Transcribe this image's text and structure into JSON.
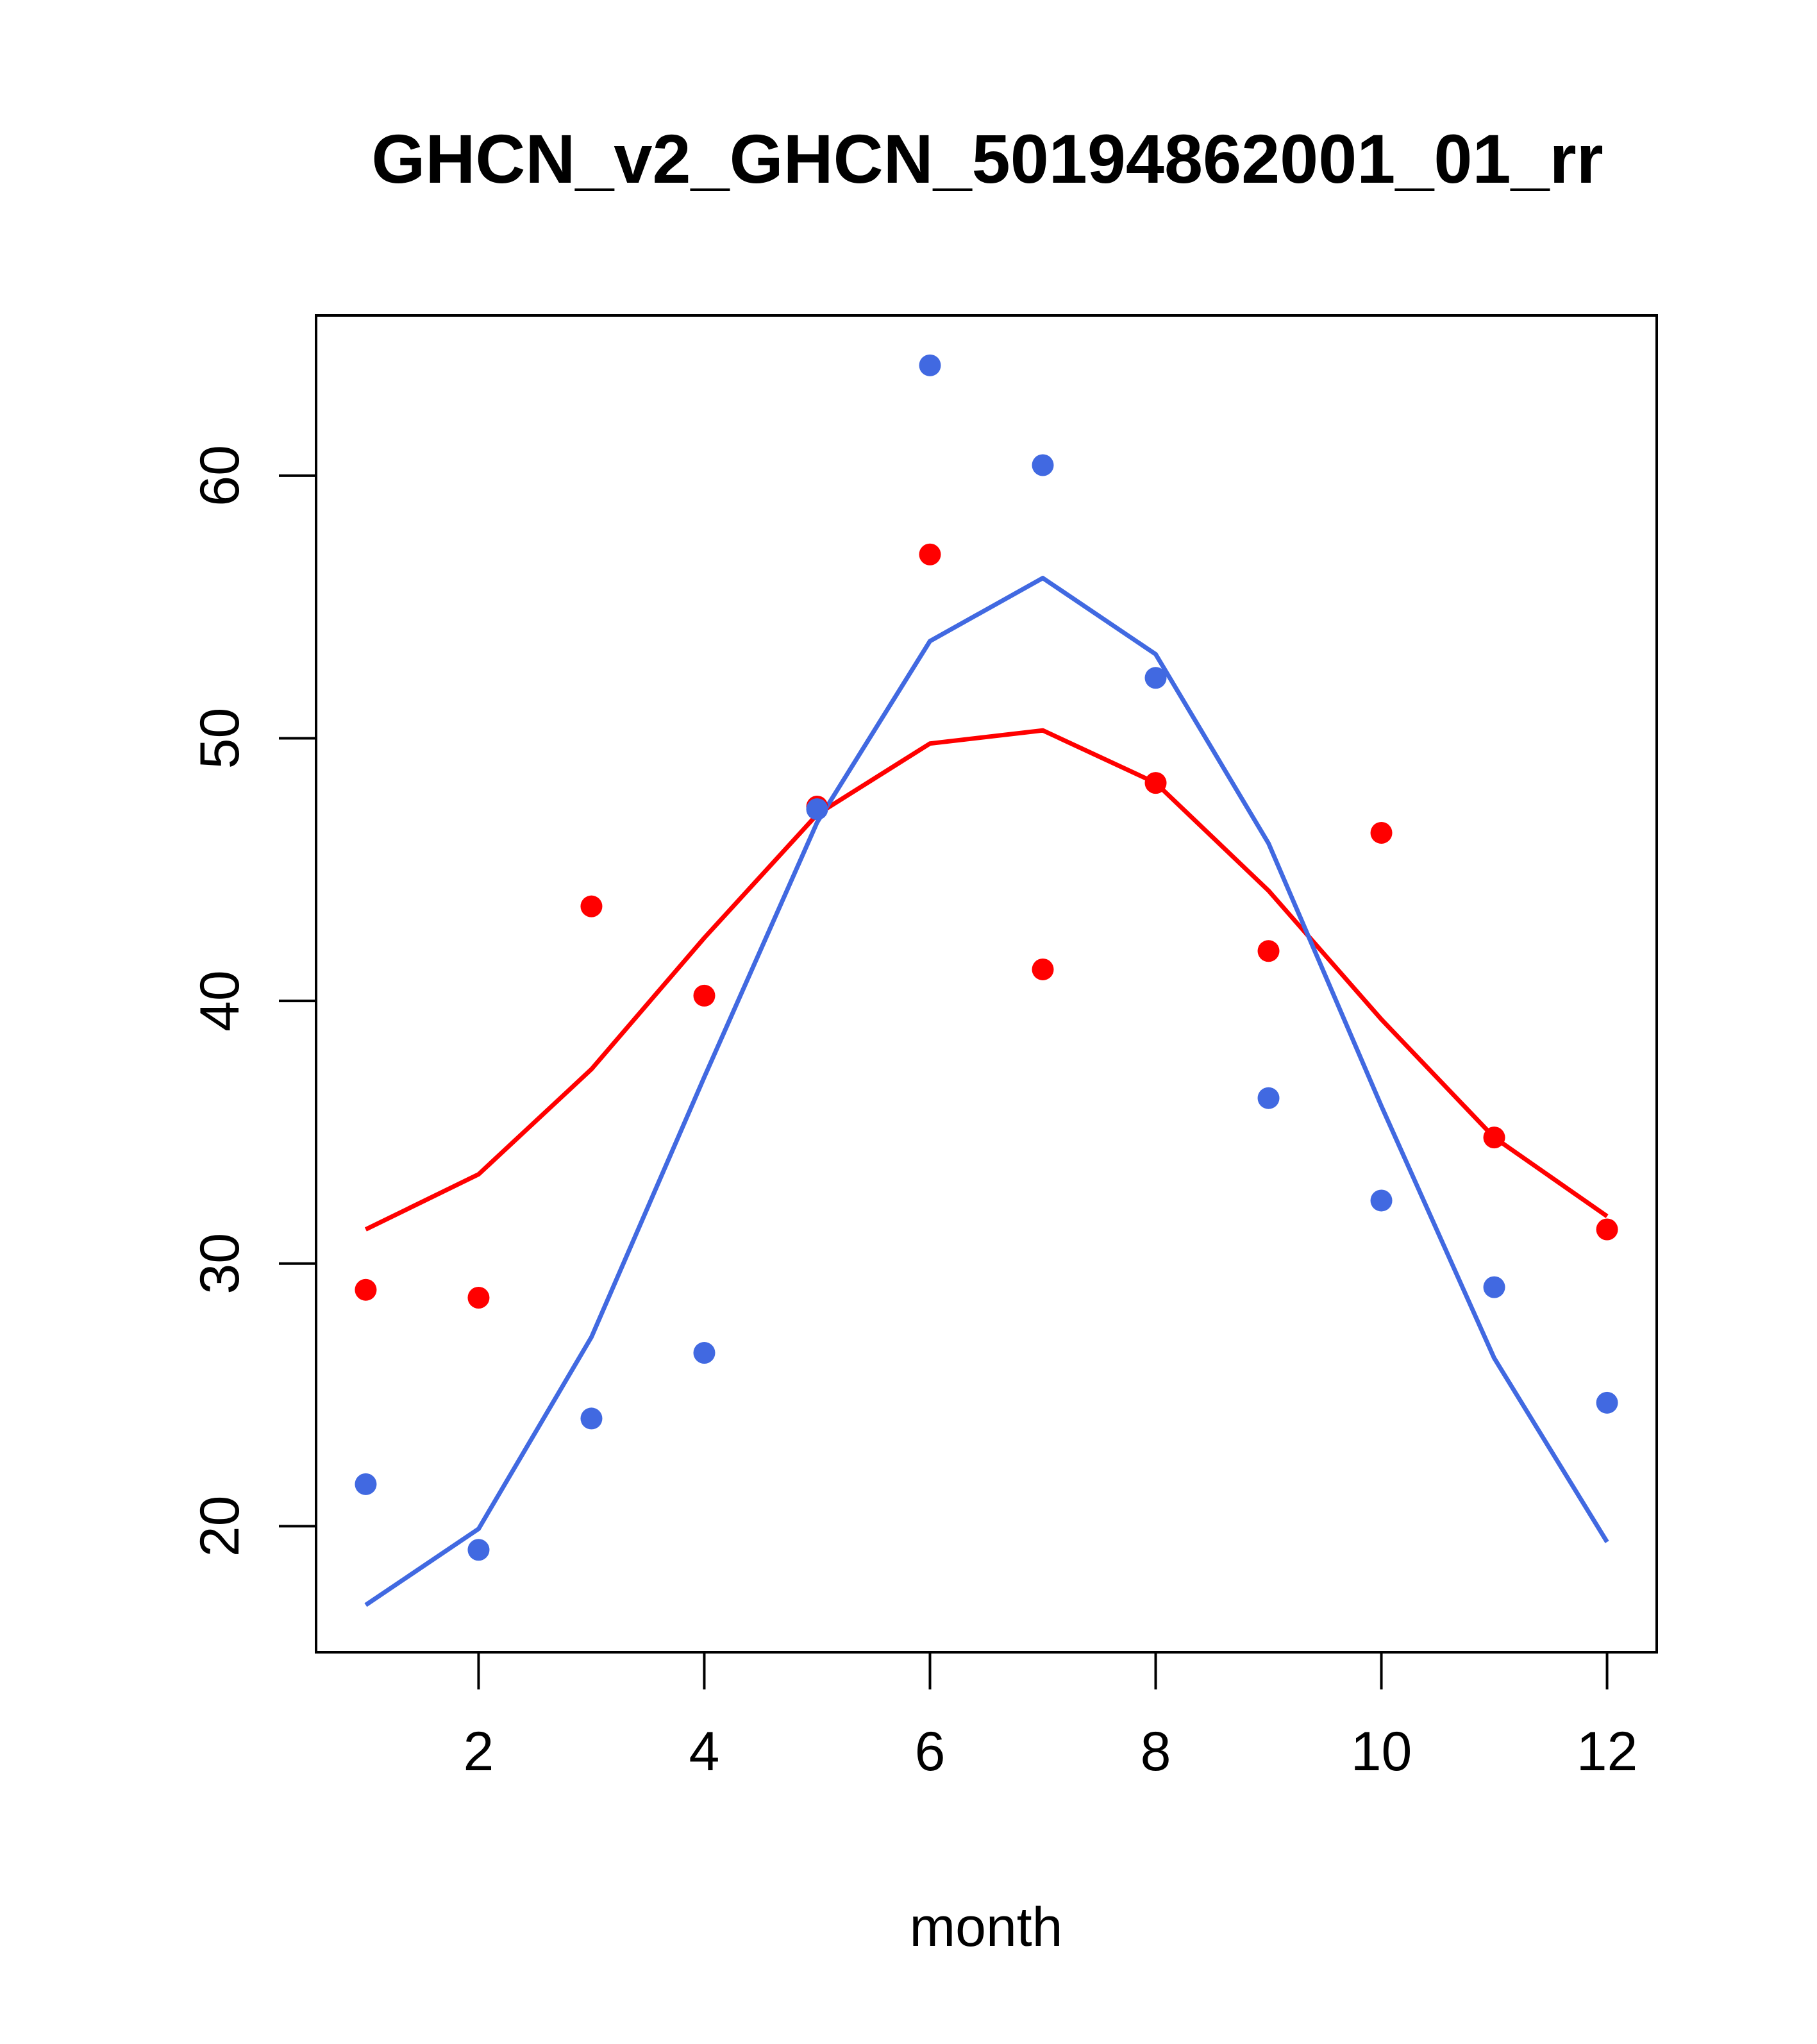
{
  "chart_data": {
    "type": "scatter",
    "title": "GHCN_v2_GHCN_50194862001_01_rr",
    "xlabel": "month",
    "ylabel": "",
    "xlim": [
      0.56,
      12.44
    ],
    "ylim": [
      15.2,
      66.1
    ],
    "xticks": [
      2,
      4,
      6,
      8,
      10,
      12
    ],
    "yticks": [
      20,
      30,
      40,
      50,
      60
    ],
    "grid": false,
    "series": [
      {
        "color": "#ff0000",
        "x": [
          1,
          2,
          3,
          4,
          5,
          6,
          7,
          8,
          9,
          10,
          11,
          12
        ],
        "points": [
          29.0,
          28.7,
          43.6,
          40.2,
          47.4,
          57.0,
          41.2,
          48.3,
          41.9,
          46.4,
          34.8,
          31.3
        ],
        "line": [
          31.3,
          33.4,
          37.4,
          42.4,
          47.1,
          49.8,
          50.3,
          48.3,
          44.2,
          39.3,
          34.8,
          31.8
        ]
      },
      {
        "color": "#4169e1",
        "x": [
          1,
          2,
          3,
          4,
          5,
          6,
          7,
          8,
          9,
          10,
          11,
          12
        ],
        "points": [
          21.6,
          19.1,
          24.1,
          26.6,
          47.3,
          64.2,
          60.4,
          52.3,
          36.3,
          32.4,
          29.1,
          24.7
        ],
        "line": [
          17.0,
          19.9,
          27.2,
          37.1,
          46.8,
          53.7,
          56.1,
          53.2,
          46.0,
          36.0,
          26.4,
          19.4
        ]
      }
    ]
  }
}
